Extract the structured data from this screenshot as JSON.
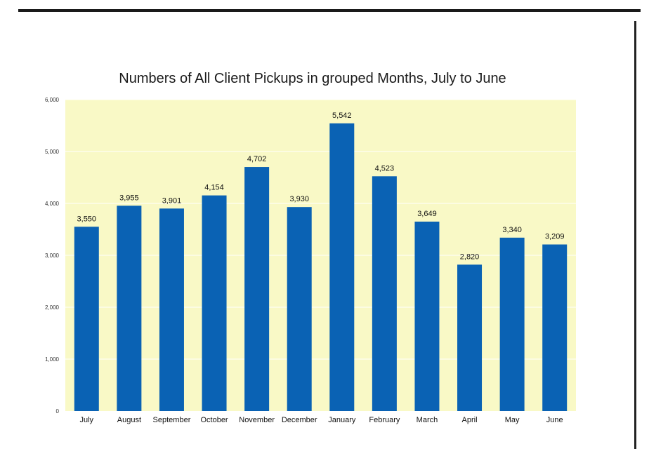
{
  "chart_data": {
    "type": "bar",
    "title": "Numbers of All Client Pickups in grouped Months, July to June",
    "xlabel": "",
    "ylabel": "",
    "categories": [
      "July",
      "August",
      "September",
      "October",
      "November",
      "December",
      "January",
      "February",
      "March",
      "April",
      "May",
      "June"
    ],
    "values": [
      3550,
      3955,
      3901,
      4154,
      4702,
      3930,
      5542,
      4523,
      3649,
      2820,
      3340,
      3209
    ],
    "value_labels": [
      "3,550",
      "3,955",
      "3,901",
      "4,154",
      "4,702",
      "3,930",
      "5,542",
      "4,523",
      "3,649",
      "2,820",
      "3,340",
      "3,209"
    ],
    "ylim": [
      0,
      6000
    ],
    "y_ticks": [
      0,
      1000,
      2000,
      3000,
      4000,
      5000,
      6000
    ],
    "y_tick_labels": [
      "0",
      "1,000",
      "2,000",
      "3,000",
      "4,000",
      "5,000",
      "6,000"
    ],
    "grid": true,
    "legend": "none",
    "colors": {
      "bar": "#0a62b4",
      "plot_background": "#f9f9c6",
      "gridline": "#ffffff"
    }
  }
}
